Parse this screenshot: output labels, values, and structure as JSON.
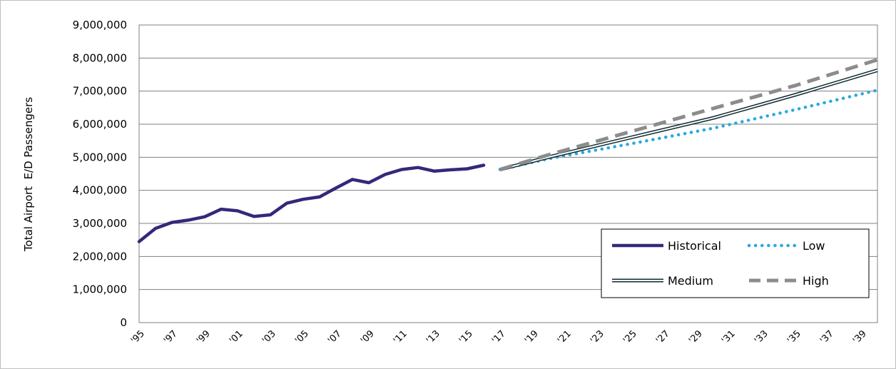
{
  "chart_data": {
    "type": "line",
    "title": "",
    "xlabel": "",
    "ylabel": "Total Airport  E/D Passengers",
    "ylim": [
      0,
      9000000
    ],
    "yticks": [
      0,
      1000000,
      2000000,
      3000000,
      4000000,
      5000000,
      6000000,
      7000000,
      8000000,
      9000000
    ],
    "ytick_labels": [
      "0",
      "1,000,000",
      "2,000,000",
      "3,000,000",
      "4,000,000",
      "5,000,000",
      "6,000,000",
      "7,000,000",
      "8,000,000",
      "9,000,000"
    ],
    "xlim": [
      1995,
      2040
    ],
    "xticks": [
      1995,
      1997,
      1999,
      2001,
      2003,
      2005,
      2007,
      2009,
      2011,
      2013,
      2015,
      2017,
      2019,
      2021,
      2023,
      2025,
      2027,
      2029,
      2031,
      2033,
      2035,
      2037,
      2039
    ],
    "xtick_labels": [
      "'95",
      "'97",
      "'99",
      "'01",
      "'03",
      "'05",
      "'07",
      "'09",
      "'11",
      "'13",
      "'15",
      "'17",
      "'19",
      "'21",
      "'23",
      "'25",
      "'27",
      "'29",
      "'31",
      "'33",
      "'35",
      "'37",
      "'39"
    ],
    "grid": "horizontal",
    "legend_position": "bottom-right",
    "series": [
      {
        "name": "Historical",
        "style": "solid-thick",
        "color": "#33297a",
        "x": [
          1995,
          1996,
          1997,
          1998,
          1999,
          2000,
          2001,
          2002,
          2003,
          2004,
          2005,
          2006,
          2007,
          2008,
          2009,
          2010,
          2011,
          2012,
          2013,
          2014,
          2015,
          2016
        ],
        "y": [
          2450000,
          2850000,
          3030000,
          3100000,
          3200000,
          3430000,
          3380000,
          3210000,
          3260000,
          3610000,
          3730000,
          3800000,
          4070000,
          4330000,
          4230000,
          4480000,
          4630000,
          4690000,
          4580000,
          4620000,
          4650000,
          4760000
        ]
      },
      {
        "name": "Low",
        "style": "dotted",
        "color": "#29a8e0",
        "x": [
          2017,
          2020,
          2025,
          2030,
          2035,
          2040
        ],
        "y": [
          4630000,
          4960000,
          5410000,
          5880000,
          6440000,
          7030000
        ]
      },
      {
        "name": "Medium",
        "style": "double",
        "color": "#0e2a30",
        "x": [
          2017,
          2020,
          2025,
          2030,
          2035,
          2040
        ],
        "y": [
          4630000,
          5010000,
          5600000,
          6190000,
          6890000,
          7630000
        ]
      },
      {
        "name": "High",
        "style": "dashed",
        "color": "#8c8c8c",
        "x": [
          2017,
          2020,
          2025,
          2030,
          2035,
          2040
        ],
        "y": [
          4630000,
          5080000,
          5780000,
          6480000,
          7170000,
          7950000
        ]
      }
    ]
  }
}
